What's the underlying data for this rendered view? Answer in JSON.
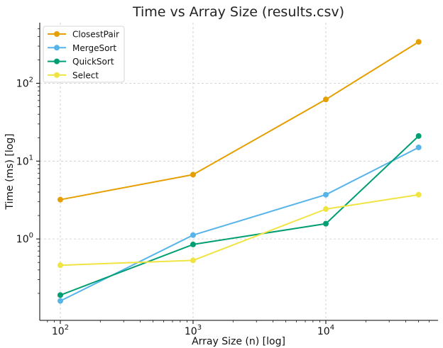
{
  "chart_data": {
    "type": "line",
    "title": "Time vs Array Size (results.csv)",
    "xlabel": "Array Size (n) [log]",
    "ylabel": "Time (ms) [log]",
    "xscale": "log",
    "yscale": "log",
    "xlim": [
      70,
      70000
    ],
    "ylim": [
      0.09,
      600
    ],
    "grid": true,
    "legend_position": "top-left",
    "x_ticks": [
      {
        "value": 100,
        "base": "10",
        "exp": "2"
      },
      {
        "value": 1000,
        "base": "10",
        "exp": "3"
      },
      {
        "value": 10000,
        "base": "10",
        "exp": "4"
      }
    ],
    "y_ticks": [
      {
        "value": 1,
        "base": "10",
        "exp": "0"
      },
      {
        "value": 10,
        "base": "10",
        "exp": "1"
      },
      {
        "value": 100,
        "base": "10",
        "exp": "2"
      }
    ],
    "x": [
      100,
      1000,
      10000,
      50000
    ],
    "series": [
      {
        "name": "ClosestPair",
        "color": "#E69F00",
        "values": [
          3.2,
          6.7,
          62,
          340
        ]
      },
      {
        "name": "MergeSort",
        "color": "#56B4E9",
        "values": [
          0.16,
          1.12,
          3.7,
          15
        ]
      },
      {
        "name": "QuickSort",
        "color": "#009E73",
        "values": [
          0.19,
          0.85,
          1.57,
          21
        ]
      },
      {
        "name": "Select",
        "color": "#F0E442",
        "values": [
          0.46,
          0.53,
          2.42,
          3.7
        ]
      }
    ]
  }
}
